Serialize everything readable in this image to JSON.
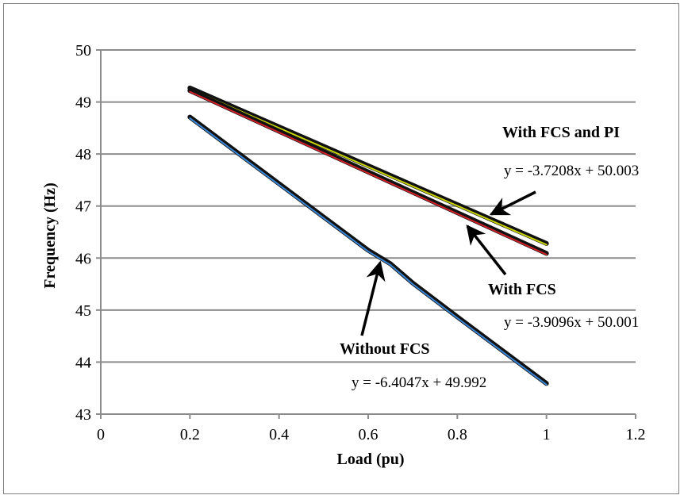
{
  "chart_data": {
    "type": "line",
    "title": "",
    "xlabel": "Load (pu)",
    "ylabel": "Frequency (Hz)",
    "xlim": [
      0,
      1.2
    ],
    "ylim": [
      43,
      50
    ],
    "xticks": [
      0,
      0.2,
      0.4,
      0.6,
      0.8,
      1,
      1.2
    ],
    "yticks": [
      43,
      44,
      45,
      46,
      47,
      48,
      49,
      50
    ],
    "xtick_labels": [
      "0",
      "0.2",
      "0.4",
      "0.6",
      "0.8",
      "1",
      "1.2"
    ],
    "ytick_labels": [
      "43",
      "44",
      "45",
      "46",
      "47",
      "48",
      "49",
      "50"
    ],
    "grid": "horizontal",
    "series": [
      {
        "name": "With FCS and PI",
        "color": "#c8d400",
        "x": [
          0.2,
          1
        ],
        "y": [
          49.27,
          46.28
        ]
      },
      {
        "name": "With FCS",
        "color": "#d0202a",
        "x": [
          0.2,
          1
        ],
        "y": [
          49.22,
          46.09
        ]
      },
      {
        "name": "Without FCS",
        "color": "#3a86d6",
        "x": [
          0.2,
          0.3,
          0.4,
          0.5,
          0.6,
          0.65,
          0.7,
          0.8,
          0.9,
          1
        ],
        "y": [
          48.71,
          48.07,
          47.43,
          46.79,
          46.15,
          45.89,
          45.52,
          44.87,
          44.23,
          43.59
        ]
      }
    ],
    "annotations": [
      {
        "id": "label_pi",
        "text": "With FCS and PI"
      },
      {
        "id": "eq_pi",
        "text": "y = -3.7208x + 50.003"
      },
      {
        "id": "label_fcs",
        "text": "With FCS"
      },
      {
        "id": "eq_fcs",
        "text": "y = -3.9096x + 50.001"
      },
      {
        "id": "label_nofcs",
        "text": "Without FCS"
      },
      {
        "id": "eq_nofcs",
        "text": "y = -6.4047x + 49.992"
      }
    ]
  }
}
